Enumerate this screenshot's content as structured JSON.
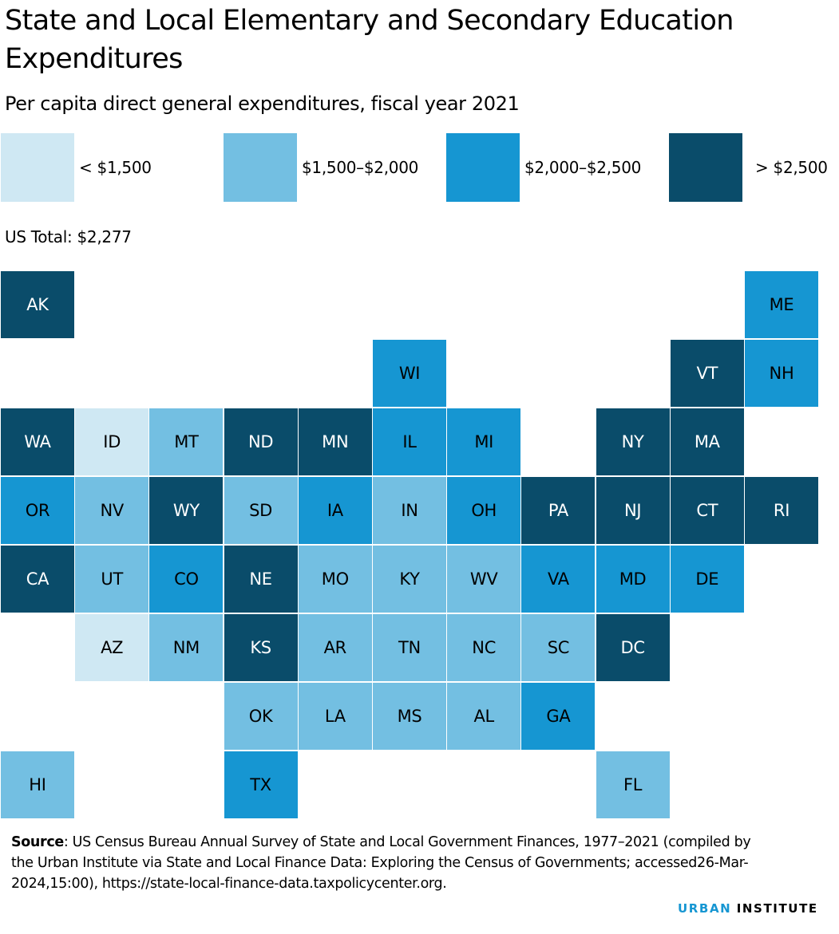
{
  "title": "State and Local Elementary and Secondary Education Expenditures",
  "subtitle": "Per capita direct general expenditures, fiscal year 2021",
  "legend": [
    {
      "label": "< $1,500",
      "color": "#cfe8f3"
    },
    {
      "label": "$1,500–$2,000",
      "color": "#73bfe2"
    },
    {
      "label": "$2,000–$2,500",
      "color": "#1696d2"
    },
    {
      "label": "> $2,500",
      "color": "#0a4c6a"
    }
  ],
  "us_total": "US Total: $2,277",
  "source": {
    "label": "Source",
    "text": ": US Census Bureau Annual Survey of State and Local Government Finances, 1977–2021 (compiled by the Urban Institute via State and Local Finance Data: Exploring the Census of Governments; accessed26-Mar-2024,15:00), https://state-local-finance-data.taxpolicycenter.org."
  },
  "brand": {
    "part1": "URBAN",
    "part2": "INSTITUTE"
  },
  "chart_data": {
    "type": "tile-map",
    "bins": [
      "< $1,500",
      "$1,500–$2,000",
      "$2,000–$2,500",
      "> $2,500"
    ],
    "states": [
      {
        "abbr": "AK",
        "row": 0,
        "col": 0,
        "bin": 3
      },
      {
        "abbr": "ME",
        "row": 0,
        "col": 10,
        "bin": 2
      },
      {
        "abbr": "WI",
        "row": 1,
        "col": 5,
        "bin": 2
      },
      {
        "abbr": "VT",
        "row": 1,
        "col": 9,
        "bin": 3
      },
      {
        "abbr": "NH",
        "row": 1,
        "col": 10,
        "bin": 2
      },
      {
        "abbr": "WA",
        "row": 2,
        "col": 0,
        "bin": 3
      },
      {
        "abbr": "ID",
        "row": 2,
        "col": 1,
        "bin": 0
      },
      {
        "abbr": "MT",
        "row": 2,
        "col": 2,
        "bin": 1
      },
      {
        "abbr": "ND",
        "row": 2,
        "col": 3,
        "bin": 3
      },
      {
        "abbr": "MN",
        "row": 2,
        "col": 4,
        "bin": 3
      },
      {
        "abbr": "IL",
        "row": 2,
        "col": 5,
        "bin": 2
      },
      {
        "abbr": "MI",
        "row": 2,
        "col": 6,
        "bin": 2
      },
      {
        "abbr": "NY",
        "row": 2,
        "col": 8,
        "bin": 3
      },
      {
        "abbr": "MA",
        "row": 2,
        "col": 9,
        "bin": 3
      },
      {
        "abbr": "OR",
        "row": 3,
        "col": 0,
        "bin": 2
      },
      {
        "abbr": "NV",
        "row": 3,
        "col": 1,
        "bin": 1
      },
      {
        "abbr": "WY",
        "row": 3,
        "col": 2,
        "bin": 3
      },
      {
        "abbr": "SD",
        "row": 3,
        "col": 3,
        "bin": 1
      },
      {
        "abbr": "IA",
        "row": 3,
        "col": 4,
        "bin": 2
      },
      {
        "abbr": "IN",
        "row": 3,
        "col": 5,
        "bin": 1
      },
      {
        "abbr": "OH",
        "row": 3,
        "col": 6,
        "bin": 2
      },
      {
        "abbr": "PA",
        "row": 3,
        "col": 7,
        "bin": 3
      },
      {
        "abbr": "NJ",
        "row": 3,
        "col": 8,
        "bin": 3
      },
      {
        "abbr": "CT",
        "row": 3,
        "col": 9,
        "bin": 3
      },
      {
        "abbr": "RI",
        "row": 3,
        "col": 10,
        "bin": 3
      },
      {
        "abbr": "CA",
        "row": 4,
        "col": 0,
        "bin": 3
      },
      {
        "abbr": "UT",
        "row": 4,
        "col": 1,
        "bin": 1
      },
      {
        "abbr": "CO",
        "row": 4,
        "col": 2,
        "bin": 2
      },
      {
        "abbr": "NE",
        "row": 4,
        "col": 3,
        "bin": 3
      },
      {
        "abbr": "MO",
        "row": 4,
        "col": 4,
        "bin": 1
      },
      {
        "abbr": "KY",
        "row": 4,
        "col": 5,
        "bin": 1
      },
      {
        "abbr": "WV",
        "row": 4,
        "col": 6,
        "bin": 1
      },
      {
        "abbr": "VA",
        "row": 4,
        "col": 7,
        "bin": 2
      },
      {
        "abbr": "MD",
        "row": 4,
        "col": 8,
        "bin": 2
      },
      {
        "abbr": "DE",
        "row": 4,
        "col": 9,
        "bin": 2
      },
      {
        "abbr": "AZ",
        "row": 5,
        "col": 1,
        "bin": 0
      },
      {
        "abbr": "NM",
        "row": 5,
        "col": 2,
        "bin": 1
      },
      {
        "abbr": "KS",
        "row": 5,
        "col": 3,
        "bin": 3
      },
      {
        "abbr": "AR",
        "row": 5,
        "col": 4,
        "bin": 1
      },
      {
        "abbr": "TN",
        "row": 5,
        "col": 5,
        "bin": 1
      },
      {
        "abbr": "NC",
        "row": 5,
        "col": 6,
        "bin": 1
      },
      {
        "abbr": "SC",
        "row": 5,
        "col": 7,
        "bin": 1
      },
      {
        "abbr": "DC",
        "row": 5,
        "col": 8,
        "bin": 3
      },
      {
        "abbr": "OK",
        "row": 6,
        "col": 3,
        "bin": 1
      },
      {
        "abbr": "LA",
        "row": 6,
        "col": 4,
        "bin": 1
      },
      {
        "abbr": "MS",
        "row": 6,
        "col": 5,
        "bin": 1
      },
      {
        "abbr": "AL",
        "row": 6,
        "col": 6,
        "bin": 1
      },
      {
        "abbr": "GA",
        "row": 6,
        "col": 7,
        "bin": 2
      },
      {
        "abbr": "HI",
        "row": 7,
        "col": 0,
        "bin": 1
      },
      {
        "abbr": "TX",
        "row": 7,
        "col": 3,
        "bin": 2
      },
      {
        "abbr": "FL",
        "row": 7,
        "col": 8,
        "bin": 1
      }
    ]
  }
}
